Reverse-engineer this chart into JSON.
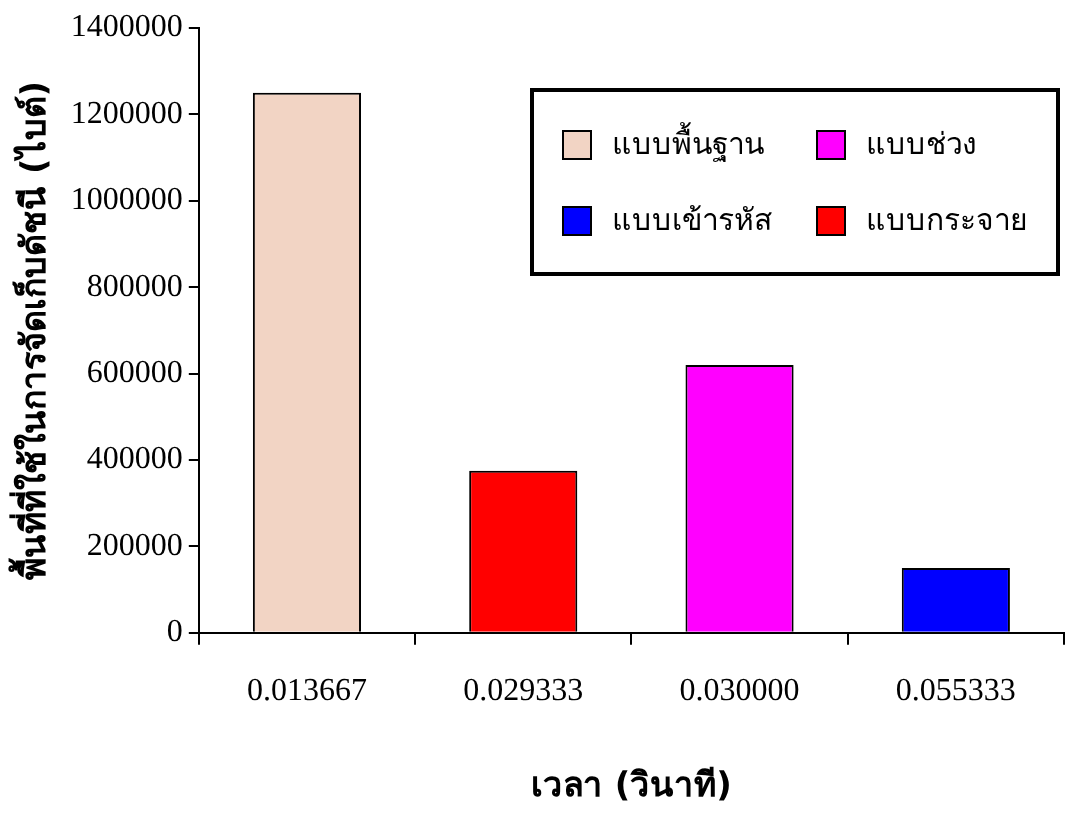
{
  "chart_data": {
    "type": "bar",
    "xlabel": "เวลา (วินาที)",
    "ylabel": "พื้นที่ที่ใช้ในการจัดเก็บดัชนี (ไบต์)",
    "categories": [
      "0.013667",
      "0.029333",
      "0.030000",
      "0.055333"
    ],
    "series": [
      {
        "name": "แบบพื้นฐาน",
        "color": "#f2d4c4",
        "values": [
          1250000,
          null,
          null,
          null
        ]
      },
      {
        "name": "แบบช่วง",
        "color": "#ff00ff",
        "values": [
          null,
          null,
          620000,
          null
        ]
      },
      {
        "name": "แบบเข้ารหัส",
        "color": "#0000ff",
        "values": [
          null,
          null,
          null,
          150000
        ]
      },
      {
        "name": "แบบกระจาย",
        "color": "#ff0000",
        "values": [
          null,
          375000,
          null,
          null
        ]
      }
    ],
    "ylim": [
      0,
      1400000
    ],
    "yticks": [
      0,
      200000,
      400000,
      600000,
      800000,
      1000000,
      1200000,
      1400000
    ],
    "grid": false,
    "legend": "top right"
  }
}
